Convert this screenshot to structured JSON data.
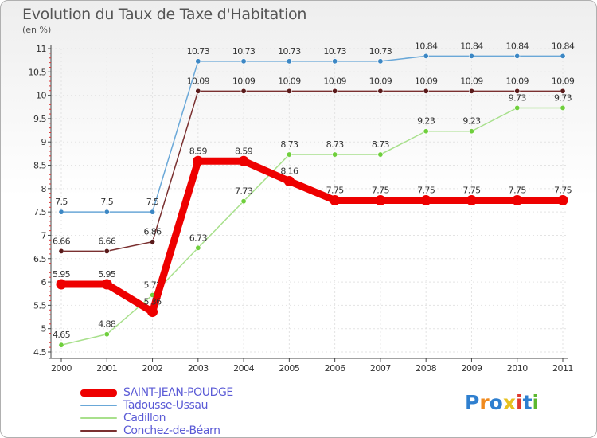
{
  "title": "Evolution du Taux de Taxe d'Habitation",
  "subtitle": "(en %)",
  "logo": {
    "text": "Proxiti",
    "colors": [
      "#2f7fcf",
      "#f08a1e",
      "#2f7fcf",
      "#e7c11f",
      "#e03a2e",
      "#2f7fcf",
      "#5cb82e"
    ]
  },
  "chart_data": {
    "type": "line",
    "x": [
      2000,
      2001,
      2002,
      2003,
      2004,
      2005,
      2006,
      2007,
      2008,
      2009,
      2010,
      2011
    ],
    "ylim": [
      4.5,
      11
    ],
    "yticks": [
      4.5,
      5,
      5.5,
      6,
      6.5,
      7,
      7.5,
      8,
      8.5,
      9,
      9.5,
      10,
      10.5,
      11
    ],
    "ytick_labels": [
      "4.5",
      "5",
      "5.5",
      "6",
      "6.5",
      "7",
      "7.5",
      "8",
      "8.5",
      "9",
      "9.5",
      "10",
      "10.5",
      "11"
    ],
    "grid": true,
    "series": [
      {
        "name": "SAINT-JEAN-POUDGE",
        "color": "#ee0000",
        "thick": true,
        "values": [
          5.95,
          5.95,
          5.36,
          8.59,
          8.59,
          8.16,
          7.75,
          7.75,
          7.75,
          7.75,
          7.75,
          7.75
        ],
        "labels": [
          "5.95",
          "5.95",
          "5.36",
          "8.59",
          "8.59",
          "8.16",
          "7.75",
          "7.75",
          "7.75",
          "7.75",
          "7.75",
          "7.75"
        ]
      },
      {
        "name": "Tadousse-Ussau",
        "color": "#6aa8d8",
        "marker": "#3c87c4",
        "thick": false,
        "values": [
          7.5,
          7.5,
          7.5,
          10.73,
          10.73,
          10.73,
          10.73,
          10.73,
          10.84,
          10.84,
          10.84,
          10.84
        ],
        "labels": [
          "7.5",
          "7.5",
          "7.5",
          "10.73",
          "10.73",
          "10.73",
          "10.73",
          "10.73",
          "10.84",
          "10.84",
          "10.84",
          "10.84"
        ]
      },
      {
        "name": "Cadillon",
        "color": "#a8e08c",
        "marker": "#6fcf3c",
        "thick": false,
        "values": [
          4.65,
          4.88,
          5.72,
          6.73,
          7.73,
          8.73,
          8.73,
          8.73,
          9.23,
          9.23,
          9.73,
          9.73
        ],
        "labels": [
          "4.65",
          "4.88",
          "5.72",
          "6.73",
          "7.73",
          "8.73",
          "8.73",
          "8.73",
          "9.23",
          "9.23",
          "9.73",
          "9.73"
        ]
      },
      {
        "name": "Conchez-de-Béarn",
        "color": "#7a3030",
        "marker": "#5a1a1a",
        "thick": false,
        "values": [
          6.66,
          6.66,
          6.86,
          10.09,
          10.09,
          10.09,
          10.09,
          10.09,
          10.09,
          10.09,
          10.09,
          10.09
        ],
        "labels": [
          "6.66",
          "6.66",
          "6.86",
          "10.09",
          "10.09",
          "10.09",
          "10.09",
          "10.09",
          "10.09",
          "10.09",
          "10.09",
          "10.09"
        ]
      }
    ]
  }
}
